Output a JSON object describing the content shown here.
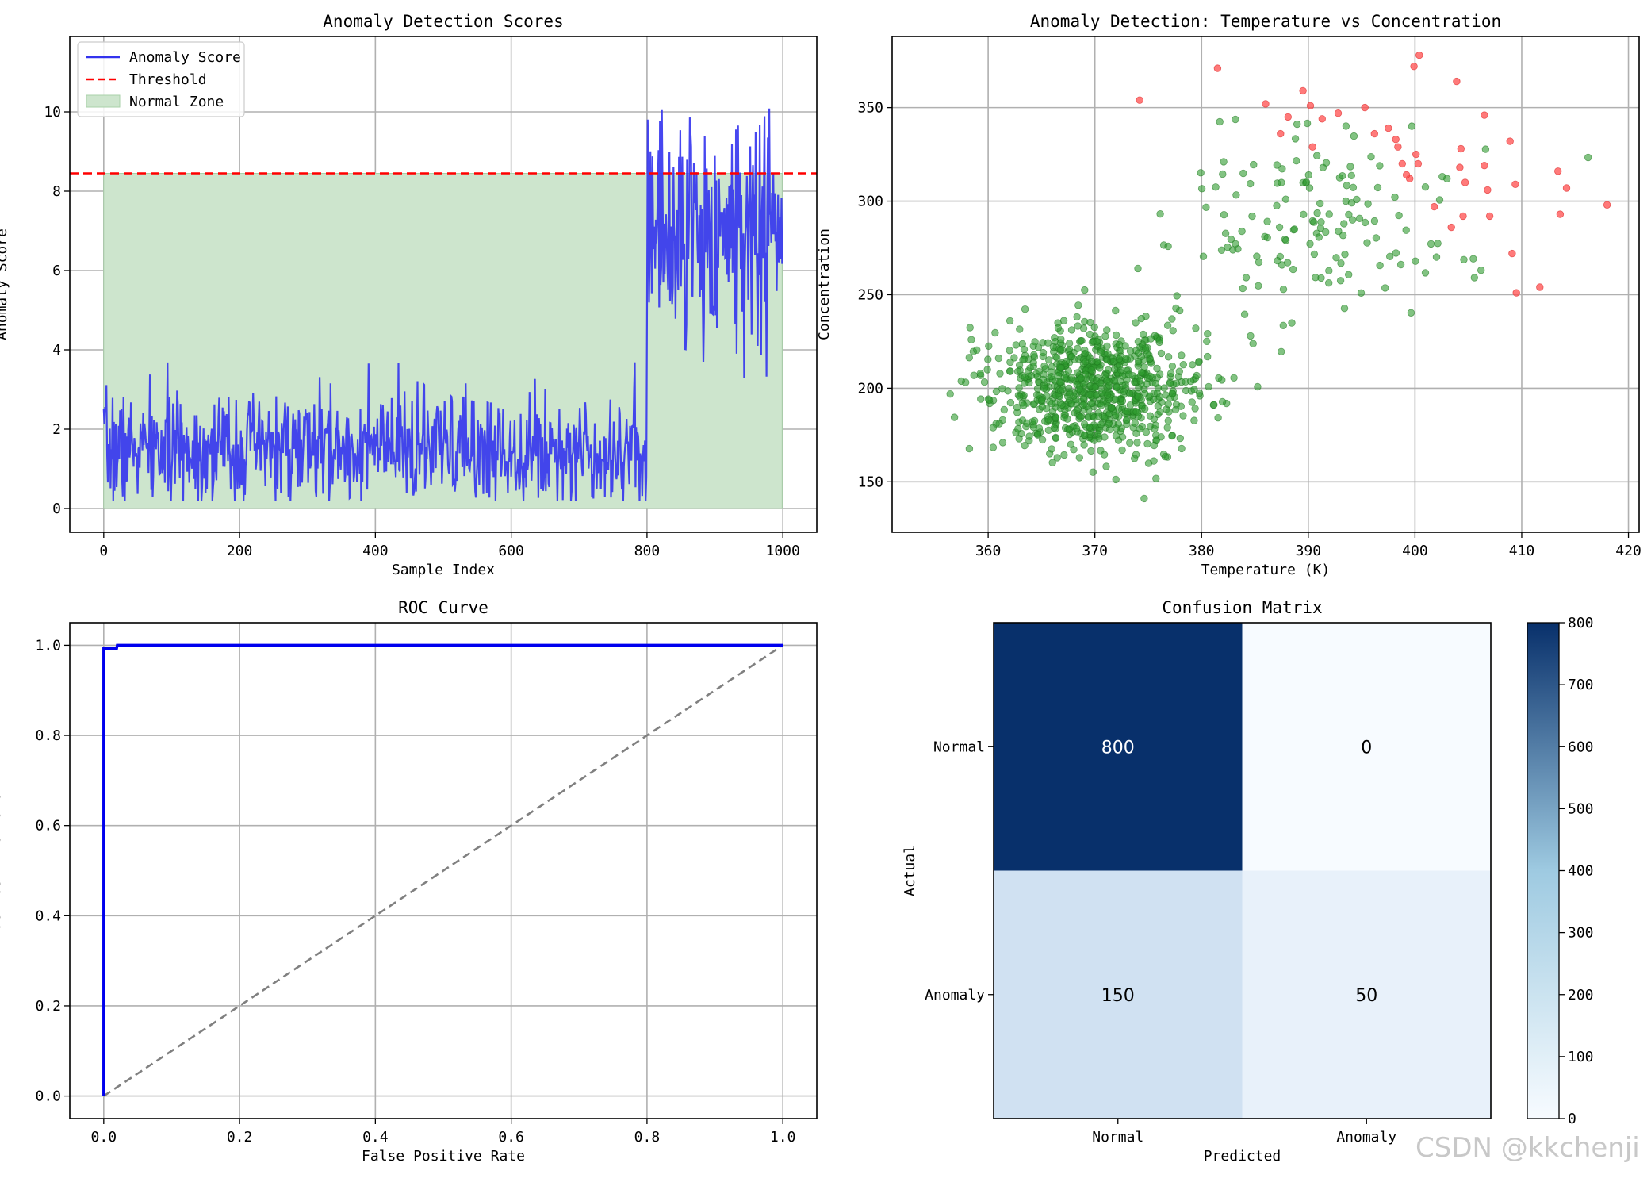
{
  "watermark": "CSDN @kkchenji",
  "colors": {
    "score": "#3333ee",
    "threshold": "#ff0000",
    "normal_zone": "#cde5cd",
    "normal_pt": "#2e9b2e",
    "anomaly_pt": "#ff4d4d",
    "roc": "#0000ee",
    "diag": "#808080",
    "cm_dark": "#08306b",
    "cm_light": "#f7fbff"
  },
  "chart_data": [
    {
      "id": "scores",
      "type": "line",
      "title": "Anomaly Detection Scores",
      "xlabel": "Sample Index",
      "ylabel": "Anomaly Score",
      "xlim": [
        -50,
        1050
      ],
      "ylim": [
        -0.6,
        11.9
      ],
      "xticks": [
        0,
        200,
        400,
        600,
        800,
        1000
      ],
      "yticks": [
        0,
        2,
        4,
        6,
        8,
        10
      ],
      "threshold": 8.45,
      "normal_zone": {
        "x": [
          0,
          999
        ],
        "y": [
          0,
          8.45
        ]
      },
      "legend": {
        "position": "top-left",
        "items": [
          "Anomaly Score",
          "Threshold",
          "Normal Zone"
        ]
      },
      "series": {
        "name": "Anomaly Score",
        "segments": [
          {
            "x": [
              0,
              799
            ],
            "mean": 1.5,
            "spread": 0.7,
            "min": 0.2,
            "max": 4.0
          },
          {
            "x": [
              800,
              999
            ],
            "mean": 7.0,
            "spread": 1.5,
            "min": 3.3,
            "max": 11.4
          }
        ]
      }
    },
    {
      "id": "scatter",
      "type": "scatter",
      "title": "Anomaly Detection: Temperature vs Concentration",
      "xlabel": "Temperature (K)",
      "ylabel": "Concentration",
      "xlim": [
        351,
        421
      ],
      "ylim": [
        123,
        388
      ],
      "xticks": [
        360,
        370,
        380,
        390,
        400,
        410,
        420
      ],
      "yticks": [
        150,
        200,
        250,
        300,
        350
      ],
      "clusters": [
        {
          "label": "normal",
          "center": [
            370,
            200
          ],
          "sd": [
            5,
            18
          ],
          "count": 800
        },
        {
          "label": "normal",
          "center": [
            390,
            290
          ],
          "sd": [
            7,
            28
          ],
          "count": 150
        }
      ],
      "anomalies": [
        [
          381.5,
          371
        ],
        [
          374.2,
          354
        ],
        [
          386.0,
          352
        ],
        [
          388.1,
          345
        ],
        [
          387.4,
          336
        ],
        [
          389.5,
          359
        ],
        [
          390.2,
          351
        ],
        [
          390.4,
          329
        ],
        [
          391.3,
          344
        ],
        [
          392.8,
          347
        ],
        [
          395.3,
          350
        ],
        [
          396.2,
          336
        ],
        [
          397.5,
          339
        ],
        [
          398.2,
          333
        ],
        [
          398.4,
          329
        ],
        [
          398.8,
          320
        ],
        [
          399.5,
          312
        ],
        [
          399.2,
          314
        ],
        [
          400.1,
          325
        ],
        [
          400.3,
          320
        ],
        [
          399.9,
          372
        ],
        [
          400.4,
          378
        ],
        [
          401.8,
          297
        ],
        [
          403.4,
          286
        ],
        [
          403.9,
          364
        ],
        [
          404.3,
          328
        ],
        [
          404.2,
          318
        ],
        [
          404.7,
          310
        ],
        [
          404.5,
          292
        ],
        [
          406.5,
          346
        ],
        [
          406.5,
          319
        ],
        [
          406.8,
          306
        ],
        [
          407.0,
          292
        ],
        [
          408.9,
          332
        ],
        [
          409.1,
          272
        ],
        [
          409.4,
          309
        ],
        [
          409.5,
          251
        ],
        [
          411.7,
          254
        ],
        [
          413.4,
          316
        ],
        [
          413.6,
          293
        ],
        [
          414.2,
          307
        ],
        [
          418.0,
          298
        ]
      ]
    },
    {
      "id": "roc",
      "type": "line",
      "title": "ROC Curve",
      "xlabel": "False Positive Rate",
      "ylabel": "True Positive Rate",
      "xlim": [
        -0.05,
        1.05
      ],
      "ylim": [
        -0.05,
        1.05
      ],
      "xticks": [
        0.0,
        0.2,
        0.4,
        0.6,
        0.8,
        1.0
      ],
      "yticks": [
        0.0,
        0.2,
        0.4,
        0.6,
        0.8,
        1.0
      ],
      "series": [
        {
          "name": "ROC",
          "x": [
            0,
            0,
            0.003,
            0.019,
            0.02,
            1.0
          ],
          "y": [
            0,
            0.993,
            0.993,
            0.993,
            1.0,
            1.0
          ]
        },
        {
          "name": "Random",
          "x": [
            0,
            1
          ],
          "y": [
            0,
            1
          ]
        }
      ]
    },
    {
      "id": "cm",
      "type": "heatmap",
      "title": "Confusion Matrix",
      "xlabel": "Predicted",
      "ylabel": "Actual",
      "xcategories": [
        "Normal",
        "Anomaly"
      ],
      "ycategories": [
        "Normal",
        "Anomaly"
      ],
      "matrix": [
        [
          800,
          0
        ],
        [
          150,
          50
        ]
      ],
      "colorbar": {
        "min": 0,
        "max": 800,
        "ticks": [
          0,
          100,
          200,
          300,
          400,
          500,
          600,
          700,
          800
        ]
      }
    }
  ]
}
